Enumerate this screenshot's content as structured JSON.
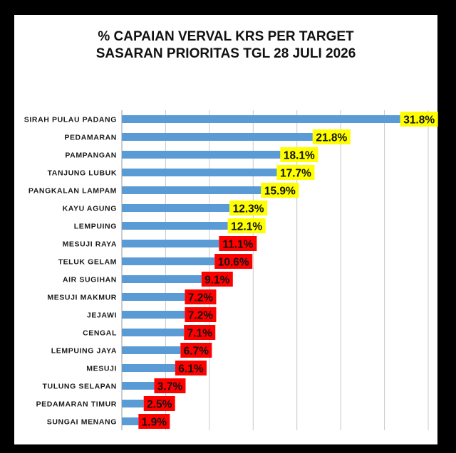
{
  "chart_data": {
    "type": "bar",
    "orientation": "horizontal",
    "title_lines": [
      "% CAPAIAN VERVAL KRS PER TARGET",
      "SASARAN PRIORITAS TGL 28 JULI 2026"
    ],
    "xlabel": "",
    "ylabel": "",
    "xlim": [
      0,
      35
    ],
    "grid": "vertical",
    "legend": "none",
    "bar_color": "#5B9BD5",
    "label_colors": {
      "high": "#FFFF00",
      "low": "#FF0000"
    },
    "categories": [
      "SIRAH PULAU PADANG",
      "PEDAMARAN",
      "PAMPANGAN",
      "TANJUNG LUBUK",
      "PANGKALAN LAMPAM",
      "KAYU AGUNG",
      "LEMPUING",
      "MESUJI RAYA",
      "TELUK GELAM",
      "AIR SUGIHAN",
      "MESUJI MAKMUR",
      "JEJAWI",
      "CENGAL",
      "LEMPUING JAYA",
      "MESUJI",
      "TULUNG SELAPAN",
      "PEDAMARAN TIMUR",
      "SUNGAI MENANG"
    ],
    "values": [
      31.8,
      21.8,
      18.1,
      17.7,
      15.9,
      12.3,
      12.1,
      11.1,
      10.6,
      9.1,
      7.2,
      7.2,
      7.1,
      6.7,
      6.1,
      3.7,
      2.5,
      1.9
    ],
    "labels": [
      "31.8%",
      "21.8%",
      "18.1%",
      "17.7%",
      "15.9%",
      "12.3%",
      "12.1%",
      "11.1%",
      "10.6%",
      "9.1%",
      "7.2%",
      "7.2%",
      "7.1%",
      "6.7%",
      "6.1%",
      "3.7%",
      "2.5%",
      "1.9%"
    ],
    "label_highlight": [
      "high",
      "high",
      "high",
      "high",
      "high",
      "high",
      "high",
      "low",
      "low",
      "low",
      "low",
      "low",
      "low",
      "low",
      "low",
      "low",
      "low",
      "low"
    ]
  }
}
